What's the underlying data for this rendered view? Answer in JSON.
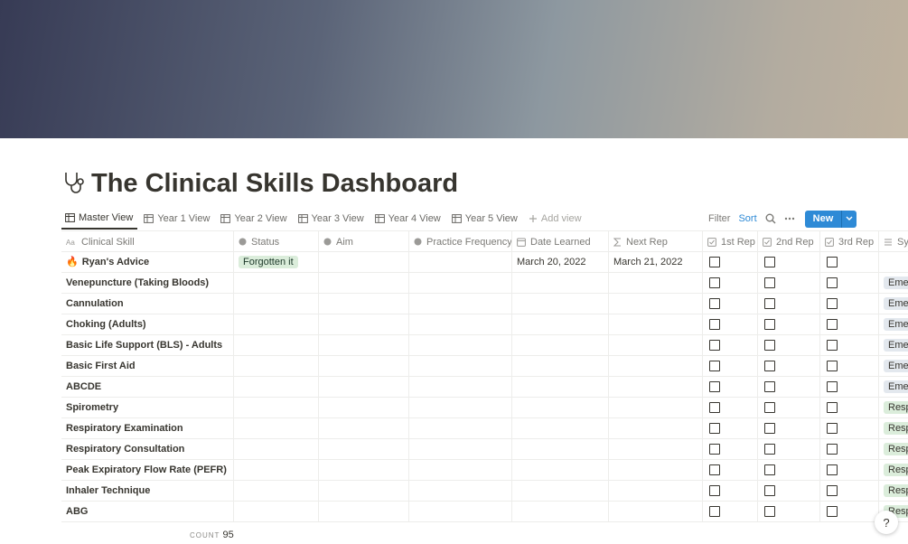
{
  "page": {
    "title": "The Clinical Skills Dashboard",
    "tabs": [
      "Master View",
      "Year 1 View",
      "Year 2 View",
      "Year 3 View",
      "Year 4 View",
      "Year 5 View"
    ],
    "add_view": "Add view",
    "toolbar": {
      "filter": "Filter",
      "sort": "Sort",
      "new": "New"
    },
    "table": {
      "columns": [
        "Clinical Skill",
        "Status",
        "Aim",
        "Practice Frequency",
        "Date Learned",
        "Next Rep",
        "1st Rep",
        "2nd Rep",
        "3rd Rep",
        "Sy"
      ],
      "rows": [
        {
          "icon": "🔥",
          "skill": "Ryan's Advice",
          "status": "Forgotten it",
          "date_learned": "March 20, 2022",
          "next_rep": "March 21, 2022"
        },
        {
          "skill": "Venepuncture (Taking Bloods)",
          "tag": "Emer",
          "tag_color": "#e3e8ee"
        },
        {
          "skill": "Cannulation",
          "tag": "Emer",
          "tag_color": "#e3e8ee"
        },
        {
          "skill": "Choking (Adults)",
          "tag": "Emer",
          "tag_color": "#e3e8ee"
        },
        {
          "skill": "Basic Life Support (BLS) - Adults",
          "tag": "Emer",
          "tag_color": "#e3e8ee"
        },
        {
          "skill": "Basic First Aid",
          "tag": "Emer",
          "tag_color": "#e3e8ee"
        },
        {
          "skill": "ABCDE",
          "tag": "Emer",
          "tag_color": "#e3e8ee"
        },
        {
          "skill": "Spirometry",
          "tag": "Resp",
          "tag_color": "#dbeddb"
        },
        {
          "skill": "Respiratory Examination",
          "tag": "Resp",
          "tag_color": "#dbeddb"
        },
        {
          "skill": "Respiratory Consultation",
          "tag": "Resp",
          "tag_color": "#dbeddb"
        },
        {
          "skill": "Peak Expiratory Flow Rate (PEFR)",
          "tag": "Resp",
          "tag_color": "#dbeddb"
        },
        {
          "skill": "Inhaler Technique",
          "tag": "Resp",
          "tag_color": "#dbeddb"
        },
        {
          "skill": "ABG",
          "tag": "Resp",
          "tag_color": "#dbeddb"
        }
      ],
      "count_label": "COUNT",
      "count": 95
    },
    "help": "?"
  }
}
